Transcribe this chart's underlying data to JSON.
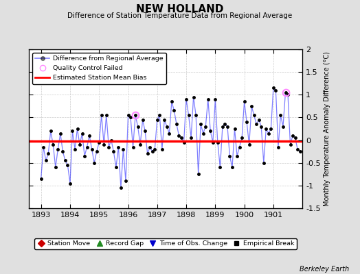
{
  "title": "NEW HOLLAND",
  "subtitle": "Difference of Station Temperature Data from Regional Average",
  "ylabel": "Monthly Temperature Anomaly Difference (°C)",
  "credit": "Berkeley Earth",
  "mean_bias": -0.02,
  "ylim": [
    -1.5,
    2.0
  ],
  "xlim_start": 1892.58,
  "xlim_end": 1902.0,
  "xticks": [
    1893,
    1894,
    1895,
    1896,
    1897,
    1898,
    1899,
    1900,
    1901
  ],
  "yticks": [
    -1.5,
    -1.0,
    -0.5,
    0.0,
    0.5,
    1.0,
    1.5,
    2.0
  ],
  "line_color": "#0000ff",
  "line_alpha": 0.5,
  "marker_color": "#000000",
  "bias_color": "#ff0000",
  "qc_color": "#ff88ff",
  "background_color": "#e0e0e0",
  "plot_bg_color": "#ffffff",
  "grid_color": "#cccccc",
  "data": {
    "times": [
      1893.0,
      1893.083,
      1893.167,
      1893.25,
      1893.333,
      1893.417,
      1893.5,
      1893.583,
      1893.667,
      1893.75,
      1893.833,
      1893.917,
      1894.0,
      1894.083,
      1894.167,
      1894.25,
      1894.333,
      1894.417,
      1894.5,
      1894.583,
      1894.667,
      1894.75,
      1894.833,
      1894.917,
      1895.0,
      1895.083,
      1895.167,
      1895.25,
      1895.333,
      1895.417,
      1895.5,
      1895.583,
      1895.667,
      1895.75,
      1895.833,
      1895.917,
      1896.0,
      1896.083,
      1896.167,
      1896.25,
      1896.333,
      1896.417,
      1896.5,
      1896.583,
      1896.667,
      1896.75,
      1896.833,
      1896.917,
      1897.0,
      1897.083,
      1897.167,
      1897.25,
      1897.333,
      1897.417,
      1897.5,
      1897.583,
      1897.667,
      1897.75,
      1897.833,
      1897.917,
      1898.0,
      1898.083,
      1898.167,
      1898.25,
      1898.333,
      1898.417,
      1898.5,
      1898.583,
      1898.667,
      1898.75,
      1898.833,
      1898.917,
      1899.0,
      1899.083,
      1899.167,
      1899.25,
      1899.333,
      1899.417,
      1899.5,
      1899.583,
      1899.667,
      1899.75,
      1899.833,
      1899.917,
      1900.0,
      1900.083,
      1900.167,
      1900.25,
      1900.333,
      1900.417,
      1900.5,
      1900.583,
      1900.667,
      1900.75,
      1900.833,
      1900.917,
      1901.0,
      1901.083,
      1901.167,
      1901.25,
      1901.333,
      1901.417,
      1901.5,
      1901.583,
      1901.667,
      1901.75,
      1901.833,
      1901.917
    ],
    "values": [
      -0.85,
      -0.15,
      -0.45,
      -0.3,
      0.2,
      -0.1,
      -0.6,
      -0.2,
      0.15,
      -0.25,
      -0.45,
      -0.55,
      -0.95,
      0.2,
      -0.2,
      0.25,
      -0.1,
      0.15,
      -0.35,
      -0.15,
      0.1,
      -0.2,
      -0.5,
      -0.25,
      -0.05,
      0.55,
      -0.1,
      0.55,
      -0.15,
      0.0,
      -0.25,
      -0.6,
      -0.15,
      -1.05,
      -0.2,
      -0.9,
      0.55,
      0.5,
      -0.15,
      0.55,
      0.3,
      -0.1,
      0.45,
      0.2,
      -0.3,
      -0.15,
      -0.25,
      -0.2,
      0.45,
      0.55,
      -0.2,
      0.45,
      0.3,
      0.15,
      0.85,
      0.65,
      0.35,
      0.1,
      0.05,
      -0.05,
      0.9,
      0.55,
      0.05,
      0.95,
      0.55,
      -0.75,
      0.35,
      0.15,
      0.3,
      0.9,
      0.2,
      -0.05,
      0.9,
      -0.05,
      -0.6,
      0.3,
      0.35,
      0.3,
      -0.35,
      -0.6,
      0.25,
      -0.35,
      -0.15,
      0.05,
      0.85,
      0.4,
      -0.1,
      0.75,
      0.55,
      0.35,
      0.45,
      0.3,
      -0.5,
      0.25,
      0.15,
      0.25,
      1.15,
      1.1,
      -0.15,
      0.55,
      0.3,
      1.05,
      1.0,
      -0.1,
      0.1,
      0.05,
      -0.2,
      -0.25
    ],
    "qc_failed_times": [
      1896.25,
      1901.417
    ],
    "qc_failed_values": [
      0.55,
      1.05
    ]
  }
}
